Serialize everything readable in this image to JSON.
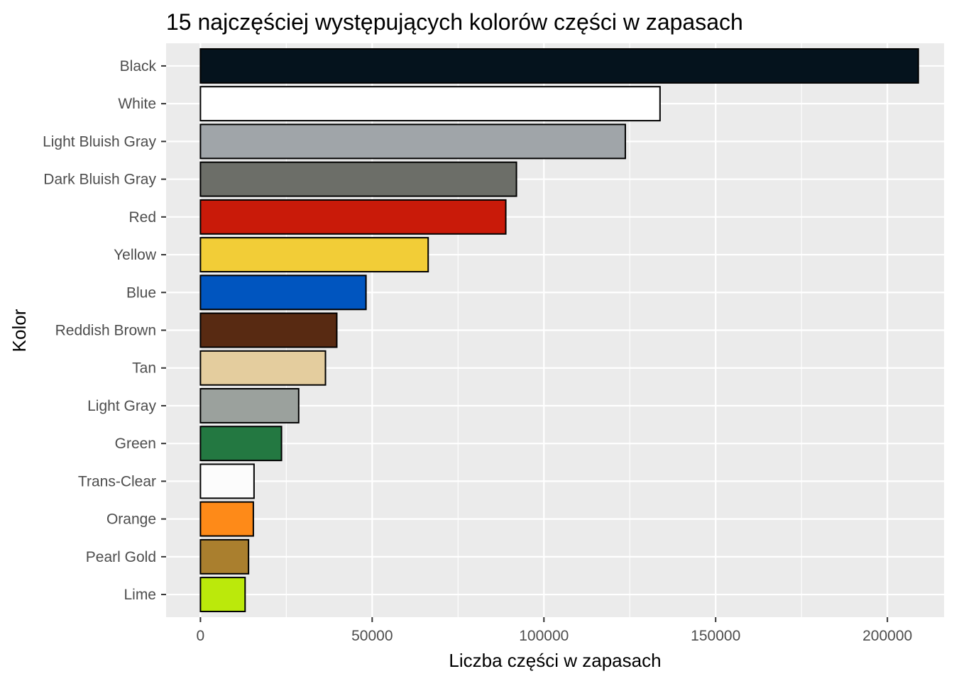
{
  "chart_data": {
    "type": "bar",
    "orientation": "horizontal",
    "title": "15 najczęściej występujących kolorów części w zapasach",
    "xlabel": "Liczba części w zapasach",
    "ylabel": "Kolor",
    "xlim": [
      -10000,
      216500
    ],
    "xticks": [
      0,
      50000,
      100000,
      150000,
      200000
    ],
    "xtick_labels": [
      "0",
      "50000",
      "100000",
      "150000",
      "200000"
    ],
    "grid": true,
    "legend": "none",
    "panel_background": "#ebebeb",
    "grid_color": "#ffffff",
    "bar_outline": "#000000",
    "categories": [
      "Black",
      "White",
      "Light Bluish Gray",
      "Dark Bluish Gray",
      "Red",
      "Yellow",
      "Blue",
      "Reddish Brown",
      "Tan",
      "Light Gray",
      "Green",
      "Trans-Clear",
      "Orange",
      "Pearl Gold",
      "Lime"
    ],
    "values": [
      209000,
      133800,
      123700,
      92000,
      88900,
      66300,
      48200,
      39700,
      36400,
      28600,
      23600,
      15600,
      15400,
      14000,
      13000
    ],
    "colors": [
      "#05131D",
      "#FFFFFF",
      "#A0A5A9",
      "#6C6E68",
      "#C91A09",
      "#F2CD37",
      "#0055BF",
      "#582A12",
      "#E4CD9E",
      "#9BA19D",
      "#237841",
      "#FCFCFC",
      "#FE8A18",
      "#AA7F2E",
      "#BBE90B"
    ]
  }
}
